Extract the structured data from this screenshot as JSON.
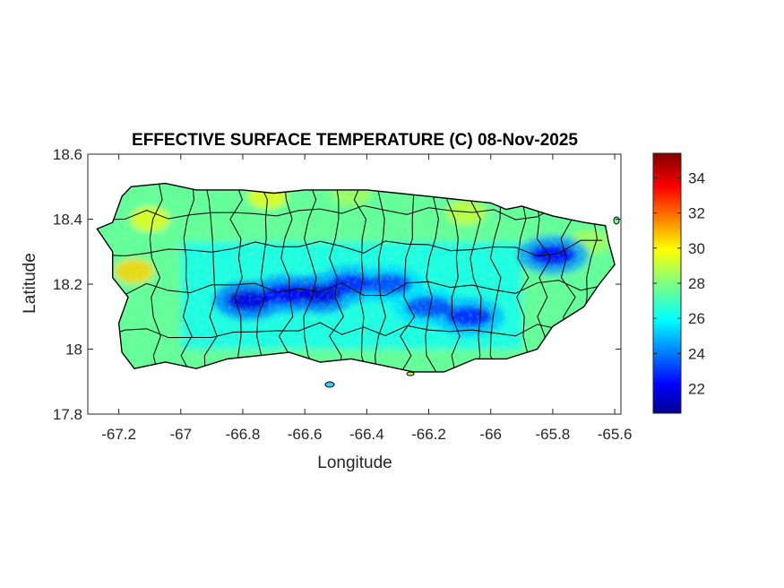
{
  "chart_data": {
    "type": "heatmap",
    "title": "EFFECTIVE SURFACE TEMPERATURE (C) 08-Nov-2025",
    "xlabel": "Longitude",
    "ylabel": "Latitude",
    "xlim": [
      -67.3,
      -65.58
    ],
    "ylim": [
      17.8,
      18.6
    ],
    "xticks": [
      -67.2,
      -67,
      -66.8,
      -66.6,
      -66.4,
      -66.2,
      -66,
      -65.8,
      -65.6
    ],
    "xtick_labels": [
      "-67.2",
      "-67",
      "-66.8",
      "-66.6",
      "-66.4",
      "-66.2",
      "-66",
      "-65.8",
      "-65.6"
    ],
    "yticks": [
      17.8,
      18,
      18.2,
      18.4,
      18.6
    ],
    "ytick_labels": [
      "17.8",
      "18",
      "18.2",
      "18.4",
      "18.6"
    ],
    "colorbar": {
      "colormap": "jet",
      "clim": [
        20.6,
        35.4
      ],
      "ticks": [
        22,
        24,
        26,
        28,
        30,
        32,
        34
      ],
      "tick_labels": [
        "22",
        "24",
        "26",
        "28",
        "30",
        "32",
        "34"
      ]
    },
    "island_outline": [
      [
        -67.27,
        18.37
      ],
      [
        -67.22,
        18.39
      ],
      [
        -67.19,
        18.47
      ],
      [
        -67.16,
        18.5
      ],
      [
        -67.05,
        18.51
      ],
      [
        -66.95,
        18.49
      ],
      [
        -66.8,
        18.49
      ],
      [
        -66.7,
        18.48
      ],
      [
        -66.6,
        18.49
      ],
      [
        -66.5,
        18.49
      ],
      [
        -66.4,
        18.49
      ],
      [
        -66.3,
        18.48
      ],
      [
        -66.2,
        18.47
      ],
      [
        -66.1,
        18.46
      ],
      [
        -66.0,
        18.45
      ],
      [
        -65.95,
        18.43
      ],
      [
        -65.9,
        18.44
      ],
      [
        -65.8,
        18.41
      ],
      [
        -65.7,
        18.39
      ],
      [
        -65.63,
        18.38
      ],
      [
        -65.62,
        18.33
      ],
      [
        -65.6,
        18.26
      ],
      [
        -65.65,
        18.2
      ],
      [
        -65.7,
        18.13
      ],
      [
        -65.8,
        18.07
      ],
      [
        -65.85,
        18.0
      ],
      [
        -65.95,
        17.97
      ],
      [
        -66.05,
        17.97
      ],
      [
        -66.15,
        17.93
      ],
      [
        -66.25,
        17.93
      ],
      [
        -66.35,
        17.95
      ],
      [
        -66.45,
        17.97
      ],
      [
        -66.55,
        17.96
      ],
      [
        -66.65,
        17.99
      ],
      [
        -66.75,
        17.98
      ],
      [
        -66.85,
        17.97
      ],
      [
        -66.95,
        17.94
      ],
      [
        -67.05,
        17.96
      ],
      [
        -67.15,
        17.94
      ],
      [
        -67.19,
        17.99
      ],
      [
        -67.2,
        18.08
      ],
      [
        -67.17,
        18.16
      ],
      [
        -67.22,
        18.22
      ],
      [
        -67.22,
        18.3
      ],
      [
        -67.27,
        18.37
      ]
    ],
    "cool_ridges": [
      {
        "lon": -66.78,
        "lat": 18.15,
        "temp": 22
      },
      {
        "lon": -66.66,
        "lat": 18.17,
        "temp": 22.5
      },
      {
        "lon": -66.55,
        "lat": 18.17,
        "temp": 22
      },
      {
        "lon": -66.45,
        "lat": 18.2,
        "temp": 23
      },
      {
        "lon": -66.33,
        "lat": 18.2,
        "temp": 23.5
      },
      {
        "lon": -66.2,
        "lat": 18.13,
        "temp": 23.5
      },
      {
        "lon": -66.07,
        "lat": 18.1,
        "temp": 23
      },
      {
        "lon": -65.8,
        "lat": 18.29,
        "temp": 22.5
      }
    ],
    "warm_spots": [
      {
        "lon": -67.15,
        "lat": 18.24,
        "temp": 30.5
      },
      {
        "lon": -67.1,
        "lat": 18.4,
        "temp": 29.5
      },
      {
        "lon": -66.72,
        "lat": 18.47,
        "temp": 29.5
      },
      {
        "lon": -66.08,
        "lat": 18.42,
        "temp": 29
      },
      {
        "lon": -65.68,
        "lat": 18.33,
        "temp": 28.5
      },
      {
        "lon": -66.45,
        "lat": 18.48,
        "temp": 28.5
      }
    ]
  }
}
